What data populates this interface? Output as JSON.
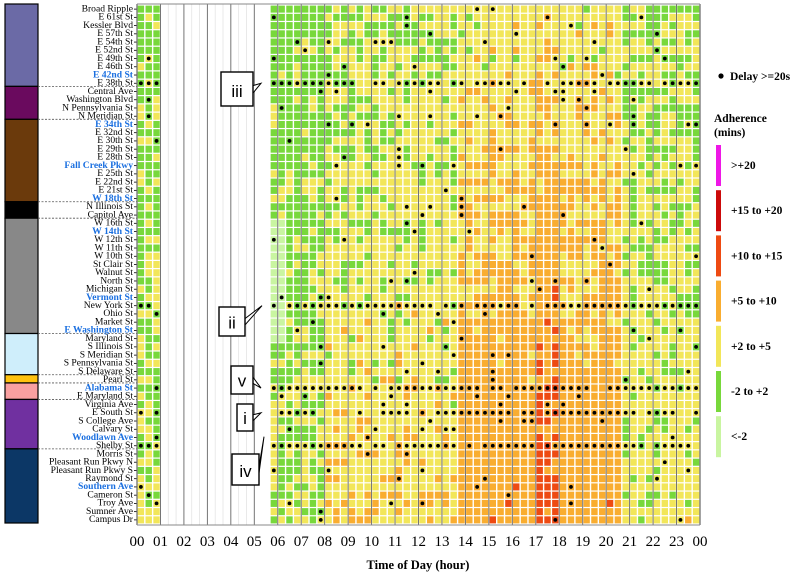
{
  "chart_data": {
    "type": "heatmap",
    "title": "",
    "xlabel": "Time of Day (hour)",
    "ylabel": "",
    "x_ticks": [
      "00",
      "01",
      "02",
      "03",
      "04",
      "05",
      "06",
      "07",
      "08",
      "09",
      "10",
      "11",
      "12",
      "13",
      "14",
      "15",
      "16",
      "17",
      "18",
      "19",
      "20",
      "21",
      "22",
      "23",
      "00"
    ],
    "bins_per_hour": 3,
    "stops": [
      {
        "name": "Broad Ripple",
        "timepoint": false
      },
      {
        "name": "E 61st St",
        "timepoint": false
      },
      {
        "name": "Kessler Blvd",
        "timepoint": false
      },
      {
        "name": "E 57th St",
        "timepoint": false
      },
      {
        "name": "E 54th St",
        "timepoint": false
      },
      {
        "name": "E 52nd St",
        "timepoint": false
      },
      {
        "name": "E 49th St",
        "timepoint": false
      },
      {
        "name": "E 46th St",
        "timepoint": false
      },
      {
        "name": "E 42nd St",
        "timepoint": true
      },
      {
        "name": "E 38th St",
        "timepoint": false
      },
      {
        "name": "Central Ave",
        "timepoint": false
      },
      {
        "name": "Washington Blvd",
        "timepoint": false
      },
      {
        "name": "N Pennsylvania St",
        "timepoint": false
      },
      {
        "name": "N Meridian St",
        "timepoint": false
      },
      {
        "name": "E 34th St",
        "timepoint": true
      },
      {
        "name": "E 32nd St",
        "timepoint": false
      },
      {
        "name": "E 30th St",
        "timepoint": false
      },
      {
        "name": "E 29th St",
        "timepoint": false
      },
      {
        "name": "E 28th St",
        "timepoint": false
      },
      {
        "name": "Fall Creek Pkwy",
        "timepoint": true
      },
      {
        "name": "E 25th St",
        "timepoint": false
      },
      {
        "name": "E 22nd St",
        "timepoint": false
      },
      {
        "name": "E 21st St",
        "timepoint": false
      },
      {
        "name": "W 18th St",
        "timepoint": true
      },
      {
        "name": "N Illinois St",
        "timepoint": false
      },
      {
        "name": "Capitol Ave",
        "timepoint": false
      },
      {
        "name": "W 16th St",
        "timepoint": false
      },
      {
        "name": "W 14th St",
        "timepoint": true
      },
      {
        "name": "W 12th St",
        "timepoint": false
      },
      {
        "name": "W 11th St",
        "timepoint": false
      },
      {
        "name": "W 10th St",
        "timepoint": false
      },
      {
        "name": "St Clair St",
        "timepoint": false
      },
      {
        "name": "Walnut St",
        "timepoint": false
      },
      {
        "name": "North St",
        "timepoint": false
      },
      {
        "name": "Michigan St",
        "timepoint": false
      },
      {
        "name": "Vermont St",
        "timepoint": true
      },
      {
        "name": "New York St",
        "timepoint": false
      },
      {
        "name": "Ohio St",
        "timepoint": false
      },
      {
        "name": "Market St",
        "timepoint": false
      },
      {
        "name": "E Washington St",
        "timepoint": true
      },
      {
        "name": "Maryland St",
        "timepoint": false
      },
      {
        "name": "S Illinois St",
        "timepoint": false
      },
      {
        "name": "S Meridian St",
        "timepoint": false
      },
      {
        "name": "S Pennsylvania St",
        "timepoint": false
      },
      {
        "name": "S Delaware St",
        "timepoint": false
      },
      {
        "name": "Pearl St",
        "timepoint": false
      },
      {
        "name": "Alabama St",
        "timepoint": true
      },
      {
        "name": "E Maryland St",
        "timepoint": false
      },
      {
        "name": "Virginia Ave",
        "timepoint": false
      },
      {
        "name": "E South St",
        "timepoint": false
      },
      {
        "name": "S College Ave",
        "timepoint": false
      },
      {
        "name": "Calvary St",
        "timepoint": false
      },
      {
        "name": "Woodlawn Ave",
        "timepoint": true
      },
      {
        "name": "Shelby St",
        "timepoint": false
      },
      {
        "name": "Morris St",
        "timepoint": false
      },
      {
        "name": "Pleasant Run Pkwy N",
        "timepoint": false
      },
      {
        "name": "Pleasant Run Pkwy S",
        "timepoint": false
      },
      {
        "name": "Raymond St",
        "timepoint": false
      },
      {
        "name": "Southern Ave",
        "timepoint": true
      },
      {
        "name": "Cameron St",
        "timepoint": false
      },
      {
        "name": "Troy Ave",
        "timepoint": false
      },
      {
        "name": "Sumner Ave",
        "timepoint": false
      },
      {
        "name": "Campus Dr",
        "timepoint": false
      }
    ],
    "segments": [
      {
        "from": 0,
        "to": 9,
        "color": "#6b6aa6"
      },
      {
        "from": 10,
        "to": 13,
        "color": "#6a0a5e"
      },
      {
        "from": 14,
        "to": 23,
        "color": "#6b3a0c"
      },
      {
        "from": 24,
        "to": 25,
        "color": "#000000"
      },
      {
        "from": 26,
        "to": 39,
        "color": "#888888"
      },
      {
        "from": 40,
        "to": 44,
        "color": "#cfeefb"
      },
      {
        "from": 45,
        "to": 45,
        "color": "#ffc20e"
      },
      {
        "from": 46,
        "to": 47,
        "color": "#f9a0a0"
      },
      {
        "from": 48,
        "to": 53,
        "color": "#7030a0"
      },
      {
        "from": 54,
        "to": 62,
        "color": "#0c3766"
      }
    ],
    "legend": {
      "marker_label": "Delay >=20s",
      "title_line1": "Adherence",
      "title_line2": "(mins)",
      "categories": [
        {
          "label": ">+20",
          "color": "#ee17e6"
        },
        {
          "label": "+15 to +20",
          "color": "#cc0a0a"
        },
        {
          "label": "+10 to +15",
          "color": "#ee4a12"
        },
        {
          "label": "+5 to +10",
          "color": "#f9ad30"
        },
        {
          "label": "+2 to +5",
          "color": "#f2e659"
        },
        {
          "label": "-2 to +2",
          "color": "#78d83b"
        },
        {
          "label": "<-2",
          "color": "#c9f5a1"
        }
      ]
    },
    "service_gap_hours": [
      1,
      5.6
    ],
    "late_evening_start": 0,
    "delay_rows": [
      9,
      36,
      46,
      49,
      53
    ],
    "annotations": [
      {
        "label": "iii",
        "stop": "E 38th St"
      },
      {
        "label": "ii",
        "stop": "New York St"
      },
      {
        "label": "v",
        "stop": "Alabama St"
      },
      {
        "label": "i",
        "stop": "E South St"
      },
      {
        "label": "iv",
        "stop": "Shelby St"
      }
    ]
  }
}
